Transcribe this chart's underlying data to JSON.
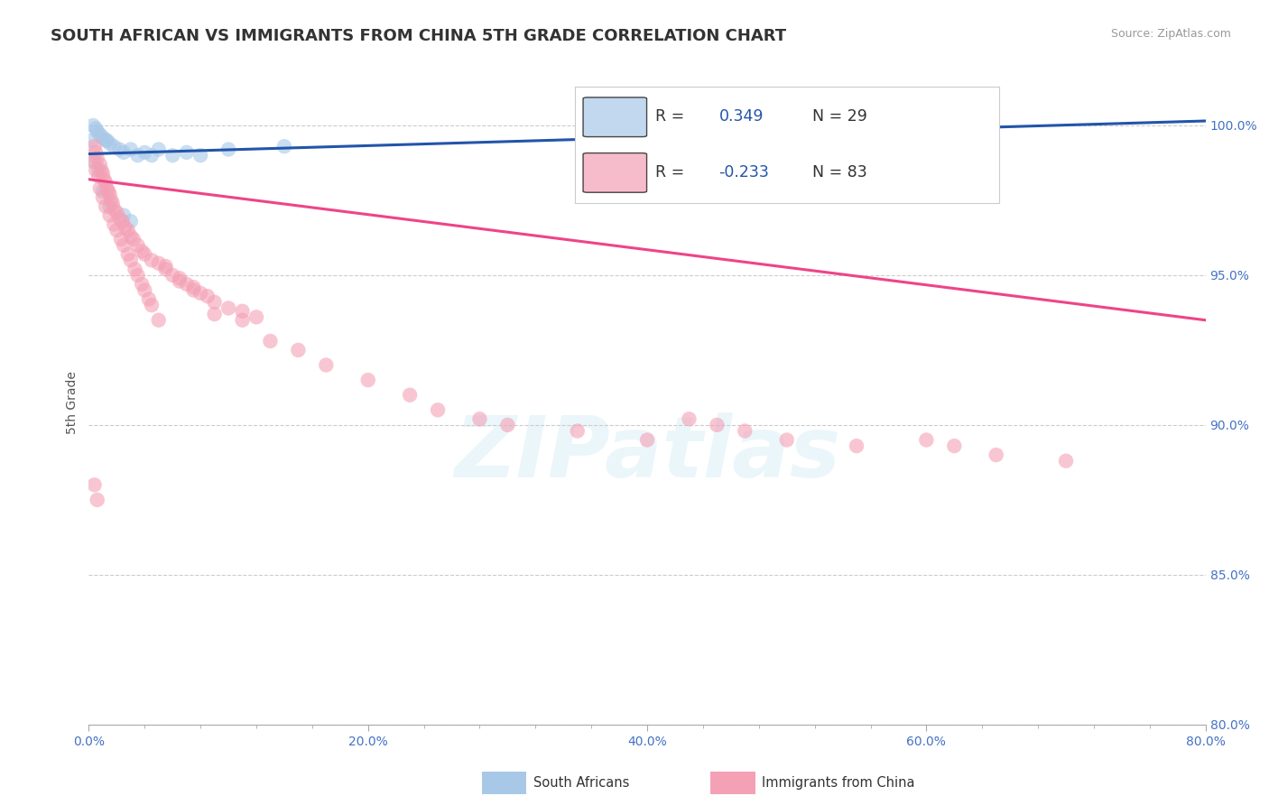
{
  "title": "SOUTH AFRICAN VS IMMIGRANTS FROM CHINA 5TH GRADE CORRELATION CHART",
  "source_text": "Source: ZipAtlas.com",
  "xlabel_ticks": [
    "0.0%",
    "",
    "",
    "",
    "",
    "20.0%",
    "",
    "",
    "",
    "",
    "40.0%",
    "",
    "",
    "",
    "",
    "60.0%",
    "",
    "",
    "",
    "",
    "80.0%"
  ],
  "xlabel_tick_vals": [
    0,
    4,
    8,
    12,
    16,
    20,
    24,
    28,
    32,
    36,
    40,
    44,
    48,
    52,
    56,
    60,
    64,
    68,
    72,
    76,
    80
  ],
  "xlabel_major_ticks": [
    0.0,
    20.0,
    40.0,
    60.0,
    80.0
  ],
  "xlabel_major_labels": [
    "0.0%",
    "20.0%",
    "40.0%",
    "60.0%",
    "80.0%"
  ],
  "ylabel": "5th Grade",
  "ylabel_ticks": [
    "100.0%",
    "95.0%",
    "90.0%",
    "85.0%",
    "80.0%"
  ],
  "ylabel_tick_vals": [
    100.0,
    95.0,
    90.0,
    85.0,
    80.0
  ],
  "xmin": 0.0,
  "xmax": 80.0,
  "ymin": 80.0,
  "ymax": 101.5,
  "legend_label1": "South Africans",
  "legend_label2": "Immigrants from China",
  "r1": 0.349,
  "n1": 29,
  "r2": -0.233,
  "n2": 83,
  "color_blue": "#a8c8e8",
  "color_pink": "#f4a0b5",
  "trendline_blue": "#2255aa",
  "trendline_pink": "#ee4488",
  "watermark": "ZIPatlas",
  "blue_trend_x0": 0.0,
  "blue_trend_y0": 99.05,
  "blue_trend_x1": 80.0,
  "blue_trend_y1": 100.15,
  "pink_trend_x0": 0.0,
  "pink_trend_y0": 98.2,
  "pink_trend_x1": 80.0,
  "pink_trend_y1": 93.5,
  "blue_points": [
    [
      0.3,
      100.0
    ],
    [
      0.5,
      99.9
    ],
    [
      0.6,
      99.8
    ],
    [
      0.8,
      99.7
    ],
    [
      1.0,
      99.6
    ],
    [
      1.2,
      99.5
    ],
    [
      1.3,
      99.5
    ],
    [
      1.5,
      99.4
    ],
    [
      1.8,
      99.3
    ],
    [
      2.2,
      99.2
    ],
    [
      2.5,
      99.1
    ],
    [
      3.0,
      99.2
    ],
    [
      3.5,
      99.0
    ],
    [
      4.0,
      99.1
    ],
    [
      4.5,
      99.0
    ],
    [
      5.0,
      99.2
    ],
    [
      6.0,
      99.0
    ],
    [
      7.0,
      99.1
    ],
    [
      8.0,
      99.0
    ],
    [
      10.0,
      99.2
    ],
    [
      14.0,
      99.3
    ],
    [
      0.4,
      98.8
    ],
    [
      0.7,
      98.5
    ],
    [
      1.0,
      97.8
    ],
    [
      1.5,
      97.3
    ],
    [
      2.5,
      97.0
    ],
    [
      3.0,
      96.8
    ],
    [
      60.0,
      100.0
    ],
    [
      0.2,
      99.5
    ]
  ],
  "pink_points": [
    [
      0.4,
      99.3
    ],
    [
      0.5,
      99.1
    ],
    [
      0.6,
      98.9
    ],
    [
      0.8,
      98.7
    ],
    [
      0.9,
      98.5
    ],
    [
      1.0,
      98.4
    ],
    [
      1.1,
      98.2
    ],
    [
      1.2,
      98.1
    ],
    [
      1.3,
      97.9
    ],
    [
      1.4,
      97.8
    ],
    [
      1.5,
      97.7
    ],
    [
      1.6,
      97.5
    ],
    [
      1.7,
      97.4
    ],
    [
      1.8,
      97.2
    ],
    [
      2.0,
      97.1
    ],
    [
      2.2,
      96.9
    ],
    [
      2.4,
      96.8
    ],
    [
      2.6,
      96.6
    ],
    [
      2.8,
      96.5
    ],
    [
      3.0,
      96.3
    ],
    [
      3.2,
      96.2
    ],
    [
      3.5,
      96.0
    ],
    [
      3.8,
      95.8
    ],
    [
      4.0,
      95.7
    ],
    [
      4.5,
      95.5
    ],
    [
      5.0,
      95.4
    ],
    [
      5.5,
      95.2
    ],
    [
      6.0,
      95.0
    ],
    [
      6.5,
      94.9
    ],
    [
      7.0,
      94.7
    ],
    [
      7.5,
      94.6
    ],
    [
      8.0,
      94.4
    ],
    [
      8.5,
      94.3
    ],
    [
      9.0,
      94.1
    ],
    [
      10.0,
      93.9
    ],
    [
      11.0,
      93.8
    ],
    [
      12.0,
      93.6
    ],
    [
      0.3,
      98.8
    ],
    [
      0.7,
      98.3
    ],
    [
      1.0,
      97.6
    ],
    [
      1.5,
      97.0
    ],
    [
      2.0,
      96.5
    ],
    [
      2.5,
      96.0
    ],
    [
      3.0,
      95.5
    ],
    [
      3.5,
      95.0
    ],
    [
      4.0,
      94.5
    ],
    [
      4.5,
      94.0
    ],
    [
      5.0,
      93.5
    ],
    [
      0.5,
      98.5
    ],
    [
      0.8,
      97.9
    ],
    [
      1.2,
      97.3
    ],
    [
      1.8,
      96.7
    ],
    [
      2.3,
      96.2
    ],
    [
      2.8,
      95.7
    ],
    [
      3.3,
      95.2
    ],
    [
      3.8,
      94.7
    ],
    [
      4.3,
      94.2
    ],
    [
      5.5,
      95.3
    ],
    [
      6.5,
      94.8
    ],
    [
      7.5,
      94.5
    ],
    [
      9.0,
      93.7
    ],
    [
      11.0,
      93.5
    ],
    [
      13.0,
      92.8
    ],
    [
      15.0,
      92.5
    ],
    [
      17.0,
      92.0
    ],
    [
      20.0,
      91.5
    ],
    [
      23.0,
      91.0
    ],
    [
      25.0,
      90.5
    ],
    [
      28.0,
      90.2
    ],
    [
      30.0,
      90.0
    ],
    [
      35.0,
      89.8
    ],
    [
      40.0,
      89.5
    ],
    [
      43.0,
      90.2
    ],
    [
      45.0,
      90.0
    ],
    [
      47.0,
      89.8
    ],
    [
      50.0,
      89.5
    ],
    [
      55.0,
      89.3
    ],
    [
      60.0,
      89.5
    ],
    [
      62.0,
      89.3
    ],
    [
      65.0,
      89.0
    ],
    [
      70.0,
      88.8
    ],
    [
      0.4,
      88.0
    ],
    [
      0.6,
      87.5
    ]
  ]
}
